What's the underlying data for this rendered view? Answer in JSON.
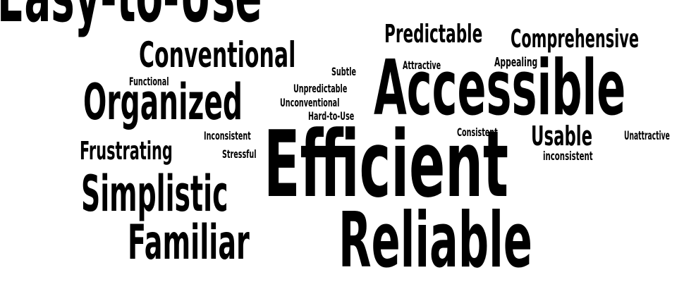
{
  "words": {
    "easy_to_use": "Easy-to-Use",
    "predictable": "Predictable",
    "comprehensive": "Comprehensive",
    "conventional": "Conventional",
    "subtle": "Subtle",
    "attractive": "Attractive",
    "appealing": "Appealing",
    "functional": "Functional",
    "accessible": "Accessible",
    "organized": "Organized",
    "unpredictable": "Unpredictable",
    "unconventional": "Unconventional",
    "hard_to_use": "Hard-to-Use",
    "consistent": "Consistent",
    "usable": "Usable",
    "unattractive": "Unattractive",
    "inconsistent_cap": "Inconsistent",
    "frustrating": "Frustrating",
    "stressful": "Stressful",
    "inconsistent": "inconsistent",
    "efficient": "Efficient",
    "simplistic": "Simplistic",
    "familiar": "Familiar",
    "reliable": "Reliable"
  },
  "colors": {
    "text": "#000000",
    "background": "#ffffff"
  }
}
